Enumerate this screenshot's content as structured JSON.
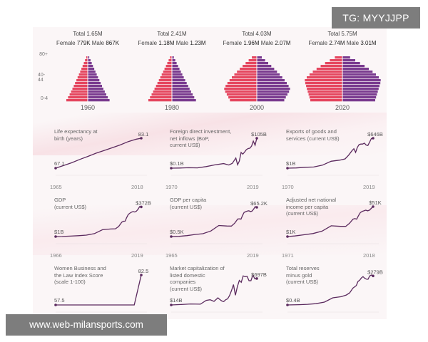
{
  "badge": "TG: MYYJJPP",
  "watermark": "www.web-milansports.com",
  "colors": {
    "female": "#e5465f",
    "male": "#7a3b8f",
    "line": "#5b2a5e"
  },
  "chart_data": [
    {
      "type": "bar",
      "chart": "population-pyramids",
      "y_ticks": [
        "80+",
        "40-44",
        "0-4"
      ],
      "pyramids": [
        {
          "year": "1960",
          "total": "Total 1.65M",
          "female": "779K",
          "male": "867K"
        },
        {
          "year": "1980",
          "total": "Total 2.41M",
          "female": "1.18M",
          "male": "1.23M"
        },
        {
          "year": "2000",
          "total": "Total 4.03M",
          "female": "1.96M",
          "male": "2.07M"
        },
        {
          "year": "2020",
          "total": "Total 5.75M",
          "female": "2.74M",
          "male": "3.01M"
        }
      ],
      "labels": {
        "female": "Female",
        "male": "Male"
      }
    },
    {
      "type": "line",
      "title": [
        "Life expectancy at",
        "birth (years)"
      ],
      "x_start": "1965",
      "x_end": "2018",
      "start_label": "67.1",
      "end_label": "83.1",
      "x": [
        1965,
        1970,
        1975,
        1980,
        1985,
        1990,
        1995,
        2000,
        2005,
        2010,
        2015,
        2018
      ],
      "y": [
        67.1,
        68.5,
        70.0,
        71.8,
        73.4,
        75.1,
        76.5,
        78.0,
        79.5,
        81.3,
        82.6,
        83.1
      ]
    },
    {
      "type": "line",
      "title": [
        "Foreign direct investment,",
        "net inflows (BoP,",
        "current US$)"
      ],
      "x_start": "1970",
      "x_end": "2019",
      "start_label": "$0.1B",
      "end_label": "$105B",
      "x": [
        1970,
        1975,
        1980,
        1985,
        1990,
        1995,
        2000,
        2003,
        2005,
        2007,
        2008,
        2009,
        2010,
        2011,
        2012,
        2013,
        2014,
        2015,
        2016,
        2017,
        2018,
        2019
      ],
      "y": [
        0.1,
        0.5,
        1.5,
        1.2,
        5.5,
        11.5,
        16.1,
        11.0,
        17.0,
        35.6,
        12.1,
        24.8,
        55.3,
        49.2,
        56.5,
        64.8,
        68.7,
        70.0,
        77.5,
        95.0,
        80.6,
        105
      ]
    },
    {
      "type": "line",
      "title": [
        "Exports of goods and",
        "services (current US$)"
      ],
      "x_start": "1970",
      "x_end": "2019",
      "start_label": "$1B",
      "end_label": "$646B",
      "x": [
        1970,
        1975,
        1980,
        1985,
        1990,
        1995,
        2000,
        2003,
        2005,
        2007,
        2008,
        2009,
        2010,
        2011,
        2012,
        2013,
        2014,
        2015,
        2016,
        2017,
        2018,
        2019
      ],
      "y": [
        1,
        5,
        20,
        25,
        65,
        150,
        175,
        200,
        280,
        380,
        420,
        340,
        450,
        510,
        520,
        520,
        540,
        500,
        490,
        560,
        640,
        646
      ]
    },
    {
      "type": "line",
      "title": [
        "GDP",
        "(current US$)"
      ],
      "x_start": "1966",
      "x_end": "2019",
      "start_label": "$1B",
      "end_label": "$372B",
      "x": [
        1966,
        1970,
        1975,
        1980,
        1985,
        1990,
        1995,
        2000,
        2003,
        2005,
        2007,
        2008,
        2009,
        2010,
        2011,
        2012,
        2013,
        2014,
        2015,
        2016,
        2017,
        2018,
        2019
      ],
      "y": [
        1,
        2,
        6,
        12,
        19,
        38,
        87,
        96,
        98,
        127,
        181,
        193,
        194,
        239,
        279,
        295,
        307,
        314,
        308,
        319,
        343,
        376,
        372
      ]
    },
    {
      "type": "line",
      "title": [
        "GDP per capita",
        "(current US$)"
      ],
      "x_start": "1965",
      "x_end": "2019",
      "start_label": "$0.5K",
      "end_label": "$65.2K",
      "x": [
        1965,
        1970,
        1975,
        1980,
        1985,
        1990,
        1995,
        2000,
        2003,
        2005,
        2007,
        2008,
        2009,
        2010,
        2011,
        2012,
        2013,
        2014,
        2015,
        2016,
        2017,
        2018,
        2019
      ],
      "y": [
        0.5,
        0.9,
        2.5,
        5.0,
        6.8,
        12.8,
        24.9,
        23.9,
        23.7,
        29.9,
        39.2,
        39.7,
        38.9,
        47.2,
        53.9,
        55.5,
        56.9,
        57.6,
        55.6,
        56.8,
        61.2,
        66.7,
        65.2
      ]
    },
    {
      "type": "line",
      "title": [
        "Adjusted net national",
        "income per capita",
        "(current US$)"
      ],
      "x_start": "1971",
      "x_end": "2018",
      "start_label": "$1K",
      "end_label": "$51K",
      "x": [
        1971,
        1975,
        1980,
        1985,
        1990,
        1995,
        2000,
        2003,
        2005,
        2007,
        2008,
        2009,
        2010,
        2011,
        2012,
        2013,
        2014,
        2015,
        2016,
        2017,
        2018
      ],
      "y": [
        1,
        2,
        4,
        6,
        10,
        19,
        18,
        18,
        23,
        30,
        31,
        30,
        36,
        41,
        43,
        44,
        45,
        44,
        45,
        48,
        51
      ]
    },
    {
      "type": "line",
      "title": [
        "Women Business and",
        "the Law Index Score",
        "(scale 1-100)"
      ],
      "x_start": "",
      "x_end": "",
      "start_label": "57.5",
      "end_label": "82.5",
      "x": [
        1970,
        1975,
        1980,
        1985,
        1990,
        1995,
        2000,
        2005,
        2010,
        2015,
        2019
      ],
      "y": [
        57.5,
        57.5,
        57.5,
        57.5,
        57.5,
        57.5,
        57.5,
        57.5,
        57.5,
        57.5,
        82.5
      ]
    },
    {
      "type": "line",
      "title": [
        "Market capitalization of",
        "listed domestic",
        "companies",
        "(current US$)"
      ],
      "x_start": "",
      "x_end": "",
      "start_label": "$14B",
      "end_label": "$697B",
      "x": [
        1975,
        1980,
        1985,
        1990,
        1993,
        1995,
        1997,
        1999,
        2000,
        2001,
        2002,
        2003,
        2004,
        2005,
        2006,
        2007,
        2008,
        2009,
        2010,
        2011,
        2012,
        2013,
        2014,
        2015,
        2016,
        2017,
        2018,
        2019
      ],
      "y": [
        14,
        25,
        40,
        34,
        132,
        148,
        106,
        198,
        153,
        117,
        101,
        148,
        172,
        257,
        384,
        540,
        265,
        482,
        647,
        598,
        765,
        744,
        752,
        640,
        640,
        787,
        687,
        697
      ]
    },
    {
      "type": "line",
      "title": [
        "Total reserves",
        "minus gold",
        "(current US$)"
      ],
      "x_start": "",
      "x_end": "",
      "start_label": "$0.4B",
      "end_label": "$279B",
      "x": [
        1968,
        1970,
        1975,
        1980,
        1985,
        1990,
        1995,
        2000,
        2003,
        2005,
        2007,
        2008,
        2009,
        2010,
        2011,
        2012,
        2013,
        2014,
        2015,
        2016,
        2017,
        2018,
        2019
      ],
      "y": [
        0.4,
        1,
        3.0,
        6.6,
        12.8,
        27.8,
        68.7,
        80.1,
        95.7,
        116,
        163,
        174,
        187,
        226,
        238,
        259,
        273,
        257,
        248,
        247,
        280,
        288,
        279
      ]
    }
  ]
}
